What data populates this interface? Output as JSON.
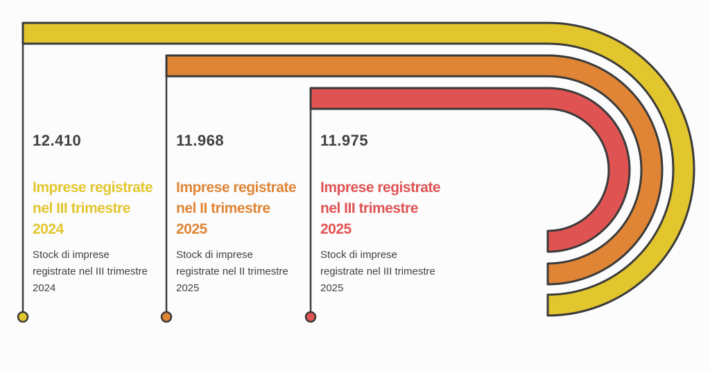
{
  "items": [
    {
      "value": "12.410",
      "title": "Imprese registrate nel III trimestre 2024",
      "description": "Stock di imprese registrate nel III trimestre 2024",
      "color": "#e2c62e"
    },
    {
      "value": "11.968",
      "title": "Imprese registrate nel II trimestre 2025",
      "description": "Stock di imprese registrate nel II trimestre 2025",
      "color": "#df8535"
    },
    {
      "value": "11.975",
      "title": "Imprese registrate nel III trimestre 2025",
      "description": "Stock di imprese registrate nel III trimestre 2025",
      "color": "#e05353"
    }
  ]
}
